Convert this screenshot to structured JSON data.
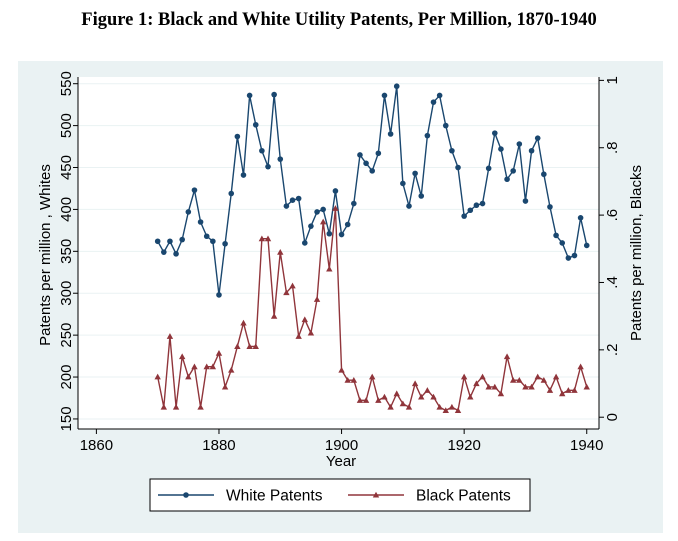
{
  "figure_title": "Figure 1: Black and White Utility Patents, Per Million, 1870-1940",
  "colors": {
    "background_panel": "#EAF2F3",
    "plot_area": "#FFFFFF",
    "white_series": "#1A476F",
    "black_series": "#90353B"
  },
  "chart_data": {
    "type": "line",
    "title": "Figure 1: Black and White Utility Patents, Per Million, 1870-1940",
    "xlabel": "Year",
    "ylabel": "Patents per million , Whites",
    "y2label": "Patents per million, Blacks",
    "xlim": [
      1857,
      1942
    ],
    "ylim": [
      138,
      558
    ],
    "y2lim": [
      -0.035,
      1.01
    ],
    "xticks": [
      1860,
      1880,
      1900,
      1920,
      1940
    ],
    "yticks": [
      150,
      200,
      250,
      300,
      350,
      400,
      450,
      500,
      550
    ],
    "y2ticks": [
      0,
      0.2,
      0.4,
      0.6,
      0.8,
      1
    ],
    "y2ticklabels": [
      "0",
      ".2",
      ".4",
      ".6",
      ".8",
      "1"
    ],
    "grid": true,
    "legend_position": "bottom",
    "x": [
      1870,
      1871,
      1872,
      1873,
      1874,
      1875,
      1876,
      1877,
      1878,
      1879,
      1880,
      1881,
      1882,
      1883,
      1884,
      1885,
      1886,
      1887,
      1888,
      1889,
      1890,
      1891,
      1892,
      1893,
      1894,
      1895,
      1896,
      1897,
      1898,
      1899,
      1900,
      1901,
      1902,
      1903,
      1904,
      1905,
      1906,
      1907,
      1908,
      1909,
      1910,
      1911,
      1912,
      1913,
      1914,
      1915,
      1916,
      1917,
      1918,
      1919,
      1920,
      1921,
      1922,
      1923,
      1924,
      1925,
      1926,
      1927,
      1928,
      1929,
      1930,
      1931,
      1932,
      1933,
      1934,
      1935,
      1936,
      1937,
      1938,
      1939,
      1940
    ],
    "series": [
      {
        "name": "White Patents",
        "axis": "left",
        "marker": "circle",
        "values": [
          362,
          349,
          362,
          347,
          364,
          397,
          423,
          385,
          368,
          362,
          298,
          359,
          419,
          487,
          441,
          536,
          501,
          470,
          451,
          537,
          460,
          404,
          411,
          413,
          360,
          380,
          397,
          400,
          371,
          422,
          370,
          382,
          407,
          465,
          455,
          446,
          467,
          536,
          490,
          547,
          431,
          404,
          443,
          416,
          488,
          528,
          536,
          500,
          470,
          450,
          392,
          399,
          405,
          407,
          449,
          491,
          472,
          436,
          446,
          478,
          410,
          470,
          485,
          442,
          403,
          369,
          360,
          342,
          345,
          390,
          357
        ]
      },
      {
        "name": "Black Patents",
        "axis": "right",
        "marker": "triangle",
        "values": [
          0.12,
          0.03,
          0.24,
          0.03,
          0.18,
          0.12,
          0.15,
          0.03,
          0.15,
          0.15,
          0.19,
          0.09,
          0.14,
          0.21,
          0.28,
          0.21,
          0.21,
          0.53,
          0.53,
          0.3,
          0.49,
          0.37,
          0.39,
          0.24,
          0.29,
          0.25,
          0.35,
          0.58,
          0.44,
          0.62,
          0.14,
          0.11,
          0.11,
          0.05,
          0.05,
          0.12,
          0.05,
          0.06,
          0.03,
          0.07,
          0.04,
          0.03,
          0.1,
          0.06,
          0.08,
          0.06,
          0.03,
          0.02,
          0.03,
          0.02,
          0.12,
          0.06,
          0.1,
          0.12,
          0.09,
          0.09,
          0.07,
          0.18,
          0.11,
          0.11,
          0.09,
          0.09,
          0.12,
          0.11,
          0.08,
          0.12,
          0.07,
          0.08,
          0.08,
          0.15,
          0.09
        ]
      }
    ]
  }
}
